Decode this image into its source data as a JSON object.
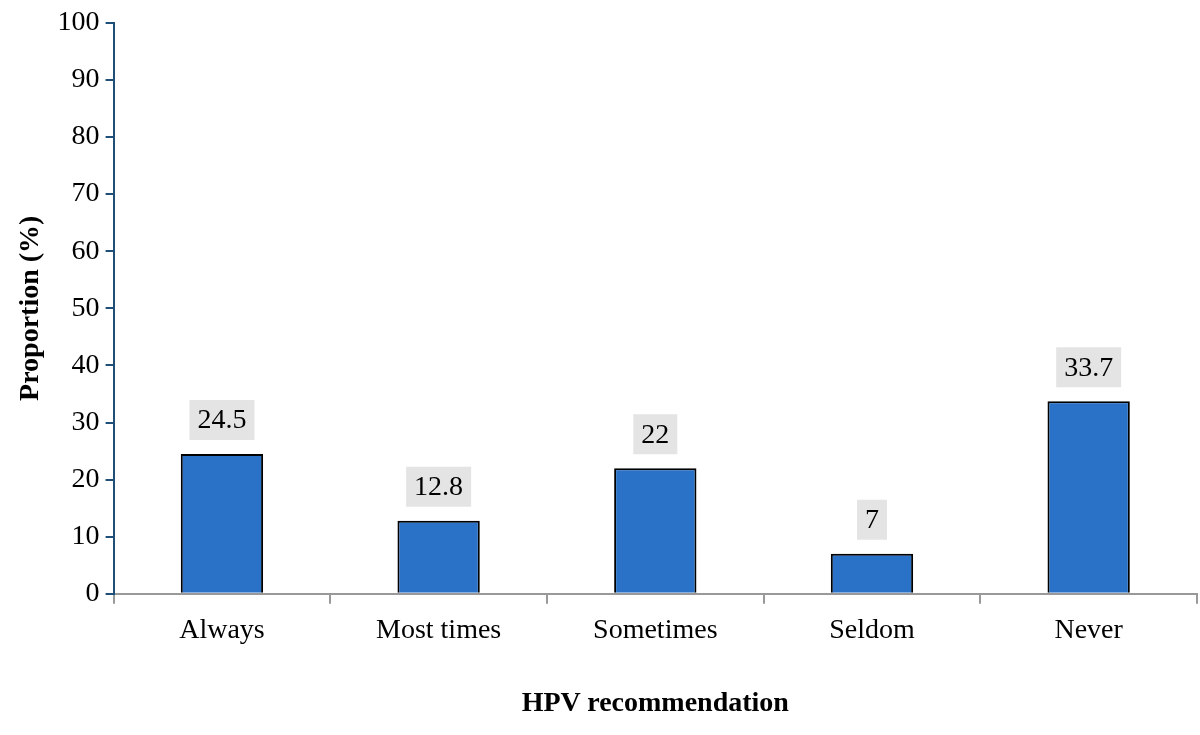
{
  "chart_data": {
    "type": "bar",
    "xlabel": "HPV recommendation",
    "ylabel": "Proportion (%)",
    "categories": [
      "Always",
      "Most times",
      "Sometimes",
      "Seldom",
      "Never"
    ],
    "values": [
      24.5,
      12.8,
      22,
      7,
      33.7
    ],
    "color": "#2a72c8",
    "ylim": [
      0,
      100
    ],
    "yticks": [
      0,
      10,
      20,
      30,
      40,
      50,
      60,
      70,
      80,
      90,
      100
    ],
    "grid": false,
    "legend": false,
    "data_labels": true
  }
}
